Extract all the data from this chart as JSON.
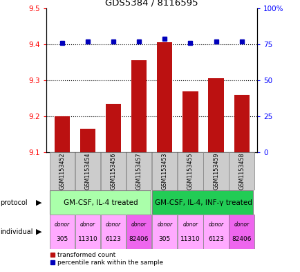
{
  "title": "GDS5384 / 8116595",
  "samples": [
    "GSM1153452",
    "GSM1153454",
    "GSM1153456",
    "GSM1153457",
    "GSM1153453",
    "GSM1153455",
    "GSM1153459",
    "GSM1153458"
  ],
  "red_values": [
    9.2,
    9.165,
    9.235,
    9.355,
    9.405,
    9.27,
    9.305,
    9.26
  ],
  "blue_values": [
    76,
    77,
    77,
    77,
    79,
    76,
    77,
    77
  ],
  "ylim_left": [
    9.1,
    9.5
  ],
  "ylim_right": [
    0,
    100
  ],
  "yticks_left": [
    9.1,
    9.2,
    9.3,
    9.4,
    9.5
  ],
  "yticks_right": [
    0,
    25,
    50,
    75,
    100
  ],
  "ytick_labels_right": [
    "0",
    "25",
    "50",
    "75",
    "100%"
  ],
  "protocol_labels": [
    "GM-CSF, IL-4 treated",
    "GM-CSF, IL-4, INF-γ treated"
  ],
  "protocol_color_light": "#aaffaa",
  "protocol_color_dark": "#22cc55",
  "individual_colors": [
    "#ffaaff",
    "#ffaaff",
    "#ffaaff",
    "#ee66ee",
    "#ffaaff",
    "#ffaaff",
    "#ffaaff",
    "#ee66ee"
  ],
  "individual_labels_top": [
    "donor",
    "donor",
    "donor",
    "donor",
    "donor",
    "donor",
    "donor",
    "donor"
  ],
  "individual_labels_bot": [
    "305",
    "11310",
    "6123",
    "82406",
    "305",
    "11310",
    "6123",
    "82406"
  ],
  "bar_color": "#bb1111",
  "dot_color": "#0000bb",
  "base_value": 9.1,
  "sample_bg": "#cccccc",
  "fig_width": 4.35,
  "fig_height": 3.93,
  "dpi": 100
}
